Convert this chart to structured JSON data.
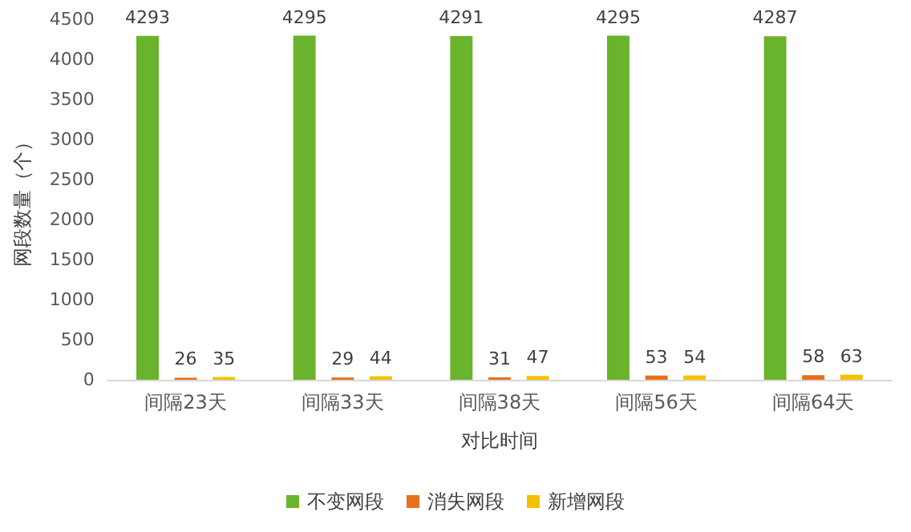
{
  "chart_data": {
    "type": "bar",
    "xlabel": "对比时间",
    "ylabel": "网段数量（个）",
    "categories": [
      "间隔23天",
      "间隔33天",
      "间隔38天",
      "间隔56天",
      "间隔64天"
    ],
    "series": [
      {
        "name": "不变网段",
        "color": "#6ab42d",
        "values": [
          4293,
          4295,
          4291,
          4295,
          4287
        ]
      },
      {
        "name": "消失网段",
        "color": "#e8711c",
        "values": [
          26,
          29,
          31,
          53,
          58
        ]
      },
      {
        "name": "新增网段",
        "color": "#f5c000",
        "values": [
          35,
          44,
          47,
          54,
          63
        ]
      }
    ],
    "ylim": [
      0,
      4500
    ],
    "yticks": [
      0,
      500,
      1000,
      1500,
      2000,
      2500,
      3000,
      3500,
      4000,
      4500
    ],
    "grid": false,
    "legend": "bottom",
    "data_labels": true
  }
}
